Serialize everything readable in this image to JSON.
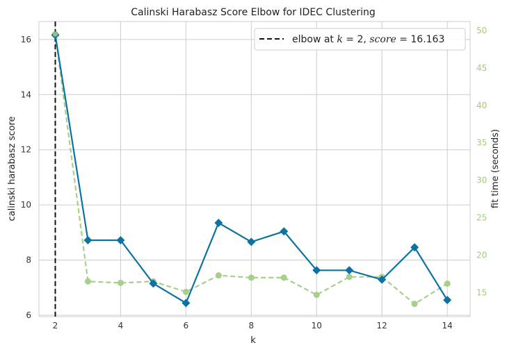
{
  "chart_data": {
    "type": "line",
    "title": "Calinski Harabasz Score Elbow for IDEC Clustering",
    "xlabel": "k",
    "ylabel": "calinski harabasz score",
    "y2label": "fit time (seconds)",
    "x": [
      2,
      3,
      4,
      5,
      6,
      7,
      8,
      9,
      10,
      11,
      12,
      13,
      14
    ],
    "xlim": [
      1.5,
      14.7
    ],
    "ylim": [
      5.95,
      16.65
    ],
    "y2lim": [
      11.8,
      51.2
    ],
    "xticks": [
      2,
      4,
      6,
      8,
      10,
      12,
      14
    ],
    "yticks": [
      6,
      8,
      10,
      12,
      14,
      16
    ],
    "y2ticks": [
      15,
      20,
      25,
      30,
      35,
      40,
      45,
      50
    ],
    "grid": true,
    "legend_position": "top-right",
    "series": [
      {
        "axis": "left",
        "marker": "diamond",
        "color": "#0c72a1",
        "values": [
          16.163,
          8.72,
          8.72,
          7.15,
          6.44,
          9.35,
          8.66,
          9.04,
          7.63,
          7.63,
          7.29,
          8.46,
          6.55
        ]
      },
      {
        "axis": "right",
        "marker": "circle",
        "linestyle": "dashed",
        "color": "#a7cf8c",
        "values": [
          49.5,
          16.5,
          16.3,
          16.5,
          15.1,
          17.3,
          17.0,
          17.0,
          14.7,
          17.1,
          17.1,
          13.5,
          16.2
        ]
      }
    ],
    "elbow": {
      "k": 2,
      "score": "16.163",
      "legend_prefix": "elbow at ",
      "k_symbol": "k",
      "k_text": " = 2, ",
      "score_symbol": "score",
      "score_text": " = 16.163"
    }
  },
  "colors": {
    "score": "#0c72a1",
    "fit_time": "#a7cf8c",
    "right_axis_text": "#a4c97c",
    "grid": "#cccccc",
    "elbow_line": "#111111"
  }
}
